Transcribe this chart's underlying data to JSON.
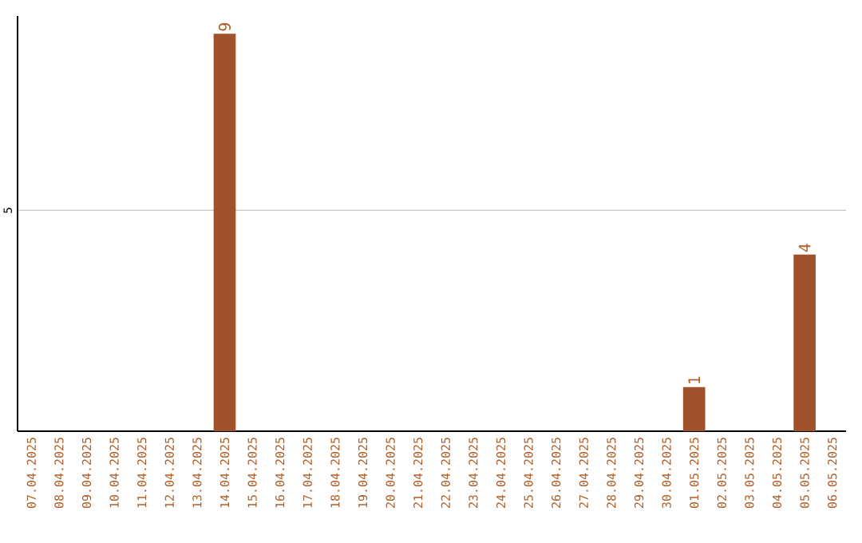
{
  "chart_data": {
    "type": "bar",
    "categories": [
      "07.04.2025",
      "08.04.2025",
      "09.04.2025",
      "10.04.2025",
      "11.04.2025",
      "12.04.2025",
      "13.04.2025",
      "14.04.2025",
      "15.04.2025",
      "16.04.2025",
      "17.04.2025",
      "18.04.2025",
      "19.04.2025",
      "20.04.2025",
      "21.04.2025",
      "22.04.2025",
      "23.04.2025",
      "24.04.2025",
      "25.04.2025",
      "26.04.2025",
      "27.04.2025",
      "28.04.2025",
      "29.04.2025",
      "30.04.2025",
      "01.05.2025",
      "02.05.2025",
      "03.05.2025",
      "04.05.2025",
      "05.05.2025",
      "06.05.2025"
    ],
    "values": [
      0,
      0,
      0,
      0,
      0,
      0,
      0,
      9,
      0,
      0,
      0,
      0,
      0,
      0,
      0,
      0,
      0,
      0,
      0,
      0,
      0,
      0,
      0,
      0,
      1,
      0,
      0,
      0,
      4,
      0
    ],
    "value_labels": [
      null,
      null,
      null,
      null,
      null,
      null,
      null,
      "9",
      null,
      null,
      null,
      null,
      null,
      null,
      null,
      null,
      null,
      null,
      null,
      null,
      null,
      null,
      null,
      null,
      "1",
      null,
      null,
      null,
      "4",
      null
    ],
    "color": "#a0522d",
    "ylim": [
      0,
      9.4
    ],
    "yticks": [
      5
    ],
    "grid": "y"
  }
}
